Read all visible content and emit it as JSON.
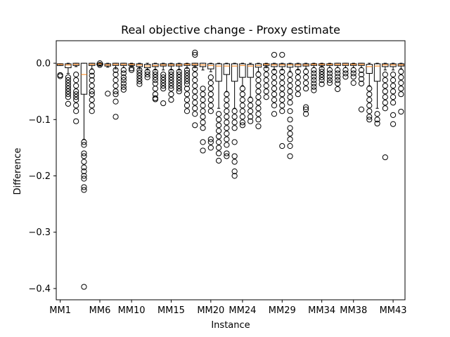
{
  "chart_data": {
    "type": "box",
    "title": "Real objective change - Proxy estimate",
    "xlabel": "Instance",
    "ylabel": "Difference",
    "ylim": [
      -0.42,
      0.04
    ],
    "yticks": [
      0.0,
      -0.1,
      -0.2,
      -0.3,
      -0.4
    ],
    "ytick_labels": [
      "0.0",
      "−0.1",
      "−0.2",
      "−0.3",
      "−0.4"
    ],
    "xtick_positions": [
      1,
      6,
      10,
      15,
      20,
      24,
      29,
      34,
      38,
      43
    ],
    "xtick_labels": [
      "MM1",
      "MM6",
      "MM10",
      "MM15",
      "MM20",
      "MM24",
      "MM29",
      "MM34",
      "MM38",
      "MM43"
    ],
    "grid": false,
    "colors": {
      "box": "#000000",
      "median": "#ff7f0e",
      "flier": "#000000"
    },
    "boxes": [
      {
        "pos": 1,
        "q1": -0.004,
        "q3": -0.001,
        "median": -0.002,
        "wlow": -0.004,
        "whigh": -0.001,
        "fliers": [
          -0.021,
          -0.023
        ]
      },
      {
        "pos": 2,
        "q1": -0.008,
        "q3": -0.001,
        "median": -0.003,
        "wlow": -0.018,
        "whigh": 0.0,
        "fliers": [
          -0.025,
          -0.03,
          -0.035,
          -0.04,
          -0.045,
          -0.05,
          -0.055,
          -0.06,
          -0.072
        ]
      },
      {
        "pos": 3,
        "q1": -0.004,
        "q3": 0.0,
        "median": -0.002,
        "wlow": -0.006,
        "whigh": 0.0,
        "fliers": [
          -0.02,
          -0.03,
          -0.04,
          -0.05,
          -0.055,
          -0.06,
          -0.065,
          -0.075,
          -0.085,
          -0.103
        ]
      },
      {
        "pos": 4,
        "q1": -0.055,
        "q3": 0.0,
        "median": -0.02,
        "wlow": -0.135,
        "whigh": 0.0,
        "fliers": [
          -0.14,
          -0.145,
          -0.16,
          -0.165,
          -0.175,
          -0.185,
          -0.192,
          -0.2,
          -0.205,
          -0.22,
          -0.225,
          -0.397
        ]
      },
      {
        "pos": 5,
        "q1": -0.004,
        "q3": 0.0,
        "median": -0.002,
        "wlow": -0.01,
        "whigh": 0.0,
        "fliers": [
          -0.015,
          -0.022,
          -0.03,
          -0.04,
          -0.05,
          -0.055,
          -0.065,
          -0.075,
          -0.085
        ]
      },
      {
        "pos": 6,
        "q1": -0.003,
        "q3": 0.0,
        "median": -0.001,
        "wlow": -0.005,
        "whigh": 0.0,
        "fliers": [
          0.0,
          -0.003
        ]
      },
      {
        "pos": 7,
        "q1": -0.005,
        "q3": -0.001,
        "median": -0.003,
        "wlow": -0.007,
        "whigh": 0.0,
        "fliers": [
          -0.054
        ]
      },
      {
        "pos": 8,
        "q1": -0.004,
        "q3": 0.0,
        "median": -0.002,
        "wlow": -0.01,
        "whigh": 0.0,
        "fliers": [
          -0.012,
          -0.02,
          -0.03,
          -0.04,
          -0.05,
          -0.055,
          -0.068,
          -0.095
        ]
      },
      {
        "pos": 9,
        "q1": -0.004,
        "q3": 0.0,
        "median": -0.002,
        "wlow": -0.008,
        "whigh": 0.0,
        "fliers": [
          -0.012,
          -0.018,
          -0.025,
          -0.03,
          -0.036,
          -0.042,
          -0.047
        ]
      },
      {
        "pos": 10,
        "q1": -0.004,
        "q3": -0.001,
        "median": -0.002,
        "wlow": -0.006,
        "whigh": 0.0,
        "fliers": [
          -0.009,
          -0.012
        ]
      },
      {
        "pos": 11,
        "q1": -0.006,
        "q3": -0.001,
        "median": -0.003,
        "wlow": -0.01,
        "whigh": 0.0,
        "fliers": [
          -0.012,
          -0.017,
          -0.022,
          -0.027,
          -0.032,
          -0.037
        ]
      },
      {
        "pos": 12,
        "q1": -0.008,
        "q3": -0.002,
        "median": -0.005,
        "wlow": -0.012,
        "whigh": 0.0,
        "fliers": [
          -0.015,
          -0.02,
          -0.025
        ]
      },
      {
        "pos": 13,
        "q1": -0.006,
        "q3": -0.001,
        "median": -0.004,
        "wlow": -0.012,
        "whigh": 0.0,
        "fliers": [
          -0.015,
          -0.02,
          -0.025,
          -0.03,
          -0.036,
          -0.045,
          -0.055,
          -0.062,
          -0.064
        ]
      },
      {
        "pos": 14,
        "q1": -0.005,
        "q3": -0.001,
        "median": -0.003,
        "wlow": -0.012,
        "whigh": 0.0,
        "fliers": [
          -0.02,
          -0.025,
          -0.03,
          -0.035,
          -0.04,
          -0.045,
          -0.071
        ]
      },
      {
        "pos": 15,
        "q1": -0.005,
        "q3": -0.001,
        "median": -0.003,
        "wlow": -0.012,
        "whigh": 0.0,
        "fliers": [
          -0.015,
          -0.02,
          -0.025,
          -0.03,
          -0.035,
          -0.04,
          -0.045,
          -0.055,
          -0.065
        ]
      },
      {
        "pos": 16,
        "q1": -0.005,
        "q3": -0.001,
        "median": -0.003,
        "wlow": -0.012,
        "whigh": 0.0,
        "fliers": [
          -0.015,
          -0.02,
          -0.025,
          -0.03,
          -0.035,
          -0.04,
          -0.045,
          -0.05
        ]
      },
      {
        "pos": 17,
        "q1": -0.004,
        "q3": -0.001,
        "median": -0.002,
        "wlow": -0.009,
        "whigh": 0.0,
        "fliers": [
          -0.012,
          -0.017,
          -0.022,
          -0.027,
          -0.032,
          -0.037,
          -0.045,
          -0.055,
          -0.065,
          -0.075,
          -0.085
        ]
      },
      {
        "pos": 18,
        "q1": -0.004,
        "q3": 0.0,
        "median": -0.002,
        "wlow": -0.008,
        "whigh": 0.0,
        "fliers": [
          0.019,
          0.015,
          -0.01,
          -0.02,
          -0.03,
          -0.04,
          -0.05,
          -0.06,
          -0.07,
          -0.08,
          -0.09,
          -0.11
        ]
      },
      {
        "pos": 19,
        "q1": -0.006,
        "q3": 0.0,
        "median": -0.003,
        "wlow": -0.012,
        "whigh": 0.0,
        "fliers": [
          -0.045,
          -0.055,
          -0.065,
          -0.075,
          -0.085,
          -0.095,
          -0.105,
          -0.115,
          -0.14,
          -0.155
        ]
      },
      {
        "pos": 20,
        "q1": -0.01,
        "q3": -0.001,
        "median": -0.004,
        "wlow": -0.015,
        "whigh": 0.0,
        "fliers": [
          -0.025,
          -0.035,
          -0.045,
          -0.055,
          -0.065,
          -0.075,
          -0.085,
          -0.135,
          -0.14,
          -0.15
        ]
      },
      {
        "pos": 21,
        "q1": -0.032,
        "q3": -0.001,
        "median": -0.005,
        "wlow": -0.08,
        "whigh": 0.0,
        "fliers": [
          -0.09,
          -0.1,
          -0.11,
          -0.12,
          -0.13,
          -0.14,
          -0.15,
          -0.16,
          -0.173
        ]
      },
      {
        "pos": 22,
        "q1": -0.02,
        "q3": -0.001,
        "median": -0.005,
        "wlow": -0.05,
        "whigh": 0.0,
        "fliers": [
          -0.055,
          -0.065,
          -0.075,
          -0.085,
          -0.095,
          -0.105,
          -0.115,
          -0.125,
          -0.135,
          -0.145,
          -0.16,
          -0.165
        ]
      },
      {
        "pos": 23,
        "q1": -0.032,
        "q3": -0.001,
        "median": -0.005,
        "wlow": -0.08,
        "whigh": 0.0,
        "fliers": [
          -0.085,
          -0.095,
          -0.105,
          -0.115,
          -0.14,
          -0.165,
          -0.175,
          -0.192,
          -0.2
        ]
      },
      {
        "pos": 24,
        "q1": -0.025,
        "q3": -0.001,
        "median": -0.004,
        "wlow": -0.04,
        "whigh": 0.0,
        "fliers": [
          -0.045,
          -0.055,
          -0.065,
          -0.075,
          -0.085,
          -0.095,
          -0.105,
          -0.11
        ]
      },
      {
        "pos": 25,
        "q1": -0.025,
        "q3": -0.002,
        "median": -0.005,
        "wlow": -0.06,
        "whigh": 0.0,
        "fliers": [
          -0.065,
          -0.075,
          -0.085,
          -0.095,
          -0.103
        ]
      },
      {
        "pos": 26,
        "q1": -0.007,
        "q3": -0.001,
        "median": -0.004,
        "wlow": -0.015,
        "whigh": 0.0,
        "fliers": [
          -0.02,
          -0.03,
          -0.04,
          -0.05,
          -0.06,
          -0.07,
          -0.08,
          -0.09,
          -0.1,
          -0.112
        ]
      },
      {
        "pos": 27,
        "q1": -0.004,
        "q3": -0.001,
        "median": -0.002,
        "wlow": -0.008,
        "whigh": 0.0,
        "fliers": [
          -0.01,
          -0.02,
          -0.03,
          -0.04,
          -0.05,
          -0.06
        ]
      },
      {
        "pos": 28,
        "q1": -0.006,
        "q3": -0.001,
        "median": -0.003,
        "wlow": -0.012,
        "whigh": 0.0,
        "fliers": [
          0.015,
          -0.015,
          -0.025,
          -0.035,
          -0.045,
          -0.055,
          -0.065,
          -0.075,
          -0.09
        ]
      },
      {
        "pos": 29,
        "q1": -0.006,
        "q3": -0.001,
        "median": -0.003,
        "wlow": -0.012,
        "whigh": 0.0,
        "fliers": [
          0.015,
          -0.015,
          -0.025,
          -0.035,
          -0.045,
          -0.055,
          -0.065,
          -0.075,
          -0.085,
          -0.147
        ]
      },
      {
        "pos": 30,
        "q1": -0.007,
        "q3": -0.001,
        "median": -0.003,
        "wlow": -0.014,
        "whigh": 0.0,
        "fliers": [
          -0.02,
          -0.03,
          -0.04,
          -0.05,
          -0.06,
          -0.07,
          -0.085,
          -0.1,
          -0.115,
          -0.125,
          -0.135,
          -0.147,
          -0.165
        ]
      },
      {
        "pos": 31,
        "q1": -0.006,
        "q3": -0.001,
        "median": -0.003,
        "wlow": -0.012,
        "whigh": 0.0,
        "fliers": [
          -0.015,
          -0.025,
          -0.035,
          -0.045,
          -0.055
        ]
      },
      {
        "pos": 32,
        "q1": -0.005,
        "q3": -0.001,
        "median": -0.003,
        "wlow": -0.01,
        "whigh": 0.0,
        "fliers": [
          -0.015,
          -0.025,
          -0.035,
          -0.045,
          -0.078,
          -0.082,
          -0.09
        ]
      },
      {
        "pos": 33,
        "q1": -0.004,
        "q3": -0.001,
        "median": -0.002,
        "wlow": -0.008,
        "whigh": 0.0,
        "fliers": [
          -0.012,
          -0.018,
          -0.024,
          -0.03,
          -0.036,
          -0.042,
          -0.048
        ]
      },
      {
        "pos": 34,
        "q1": -0.004,
        "q3": -0.001,
        "median": -0.002,
        "wlow": -0.007,
        "whigh": 0.0,
        "fliers": [
          -0.01,
          -0.015,
          -0.02,
          -0.025,
          -0.03,
          -0.037
        ]
      },
      {
        "pos": 35,
        "q1": -0.004,
        "q3": -0.001,
        "median": -0.002,
        "wlow": -0.008,
        "whigh": 0.0,
        "fliers": [
          -0.012,
          -0.018,
          -0.024,
          -0.03,
          -0.035
        ]
      },
      {
        "pos": 36,
        "q1": -0.004,
        "q3": 0.0,
        "median": -0.002,
        "wlow": -0.008,
        "whigh": 0.0,
        "fliers": [
          -0.012,
          -0.018,
          -0.024,
          -0.03,
          -0.036,
          -0.046
        ]
      },
      {
        "pos": 37,
        "q1": -0.004,
        "q3": 0.0,
        "median": -0.002,
        "wlow": -0.008,
        "whigh": 0.0,
        "fliers": [
          -0.012,
          -0.018,
          -0.024
        ]
      },
      {
        "pos": 38,
        "q1": -0.004,
        "q3": -0.001,
        "median": -0.002,
        "wlow": -0.008,
        "whigh": 0.0,
        "fliers": [
          -0.012,
          -0.018,
          -0.024,
          -0.035
        ]
      },
      {
        "pos": 39,
        "q1": -0.004,
        "q3": 0.0,
        "median": -0.002,
        "wlow": -0.008,
        "whigh": 0.0,
        "fliers": [
          -0.012,
          -0.02,
          -0.028,
          -0.036,
          -0.082
        ]
      },
      {
        "pos": 40,
        "q1": -0.018,
        "q3": -0.002,
        "median": -0.006,
        "wlow": -0.04,
        "whigh": 0.0,
        "fliers": [
          -0.045,
          -0.055,
          -0.065,
          -0.075,
          -0.085,
          -0.095,
          -0.1
        ]
      },
      {
        "pos": 41,
        "q1": -0.032,
        "q3": -0.001,
        "median": -0.005,
        "wlow": -0.08,
        "whigh": 0.0,
        "fliers": [
          -0.09,
          -0.1,
          -0.107
        ]
      },
      {
        "pos": 42,
        "q1": -0.006,
        "q3": -0.001,
        "median": -0.003,
        "wlow": -0.012,
        "whigh": 0.0,
        "fliers": [
          -0.02,
          -0.03,
          -0.04,
          -0.05,
          -0.06,
          -0.07,
          -0.08,
          -0.167
        ]
      },
      {
        "pos": 43,
        "q1": -0.006,
        "q3": -0.001,
        "median": -0.003,
        "wlow": -0.012,
        "whigh": 0.0,
        "fliers": [
          -0.02,
          -0.03,
          -0.04,
          -0.05,
          -0.06,
          -0.07,
          -0.092,
          -0.108
        ]
      },
      {
        "pos": 44,
        "q1": -0.005,
        "q3": -0.001,
        "median": -0.003,
        "wlow": -0.01,
        "whigh": 0.0,
        "fliers": [
          -0.015,
          -0.025,
          -0.035,
          -0.045,
          -0.055,
          -0.086
        ]
      }
    ]
  }
}
